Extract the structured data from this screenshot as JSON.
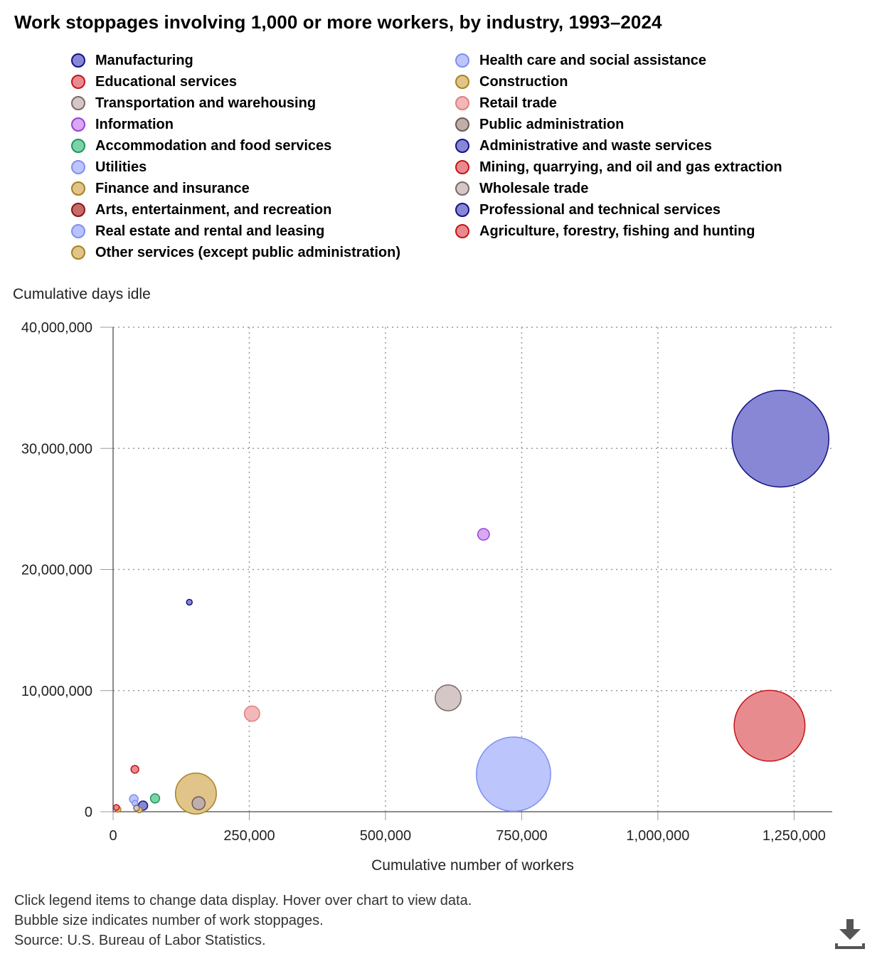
{
  "title": "Work stoppages involving 1,000 or more workers, by industry, 1993–2024",
  "legend": [
    {
      "label": "Manufacturing",
      "fill": "#8787d6",
      "stroke": "#141482"
    },
    {
      "label": "Educational services",
      "fill": "#e88b8e",
      "stroke": "#c4161c"
    },
    {
      "label": "Transportation and warehousing",
      "fill": "#d6c7c7",
      "stroke": "#7a6a6a"
    },
    {
      "label": "Information",
      "fill": "#d8a8f2",
      "stroke": "#9b40d8"
    },
    {
      "label": "Accommodation and food services",
      "fill": "#7fd1aa",
      "stroke": "#1a9a5a"
    },
    {
      "label": "Utilities",
      "fill": "#bcc5fc",
      "stroke": "#7f8ff0"
    },
    {
      "label": "Finance and insurance",
      "fill": "#e0c48a",
      "stroke": "#a8821e"
    },
    {
      "label": "Arts, entertainment, and recreation",
      "fill": "#c76a6a",
      "stroke": "#8a1515"
    },
    {
      "label": "Real estate and rental and leasing",
      "fill": "#b8c2fc",
      "stroke": "#7f8ff0"
    },
    {
      "label": "Other services (except public administration)",
      "fill": "#e0c48a",
      "stroke": "#a8821e"
    },
    {
      "label": "Health care and social assistance",
      "fill": "#bcc5fc",
      "stroke": "#7f8ff0"
    },
    {
      "label": "Construction",
      "fill": "#e0c48a",
      "stroke": "#a8821e"
    },
    {
      "label": "Retail trade",
      "fill": "#f2b8b8",
      "stroke": "#e08080"
    },
    {
      "label": "Public administration",
      "fill": "#bfaea9",
      "stroke": "#6e5a52"
    },
    {
      "label": "Administrative and waste services",
      "fill": "#8787d6",
      "stroke": "#141482"
    },
    {
      "label": "Mining, quarrying, and oil and gas extraction",
      "fill": "#e88b8e",
      "stroke": "#c4161c"
    },
    {
      "label": "Wholesale trade",
      "fill": "#d6c7c7",
      "stroke": "#7a6a6a"
    },
    {
      "label": "Professional and technical services",
      "fill": "#8787d6",
      "stroke": "#141482"
    },
    {
      "label": "Agriculture, forestry, fishing and hunting",
      "fill": "#e88b8e",
      "stroke": "#c4161c"
    }
  ],
  "chart_data": {
    "type": "scatter",
    "title": "Work stoppages involving 1,000 or more workers, by industry, 1993–2024",
    "xlabel": "Cumulative number of workers",
    "ylabel": "Cumulative days idle",
    "xlim": [
      0,
      1320000
    ],
    "ylim": [
      0,
      40000000
    ],
    "xticks": [
      0,
      250000,
      500000,
      750000,
      1000000,
      1250000
    ],
    "xtick_labels": [
      "0",
      "250,000",
      "500,000",
      "750,000",
      "1,000,000",
      "1,250,000"
    ],
    "yticks": [
      0,
      10000000,
      20000000,
      30000000,
      40000000
    ],
    "ytick_labels": [
      "0",
      "10,000,000",
      "20,000,000",
      "30,000,000",
      "40,000,000"
    ],
    "grid": true,
    "bubble_size_meaning": "number of work stoppages",
    "series": [
      {
        "name": "Manufacturing",
        "x": 1225000,
        "y": 30800000,
        "size": 280
      },
      {
        "name": "Educational services",
        "x": 1205000,
        "y": 7100000,
        "size": 150
      },
      {
        "name": "Transportation and warehousing",
        "x": 615000,
        "y": 9400000,
        "size": 20
      },
      {
        "name": "Information",
        "x": 680000,
        "y": 22900000,
        "size": 4
      },
      {
        "name": "Accommodation and food services",
        "x": 77000,
        "y": 1100000,
        "size": 2.5
      },
      {
        "name": "Utilities",
        "x": 38000,
        "y": 1050000,
        "size": 2.2
      },
      {
        "name": "Finance and insurance",
        "x": 48000,
        "y": 150000,
        "size": 0.4
      },
      {
        "name": "Arts, entertainment, and recreation",
        "x": 7000,
        "y": 300000,
        "size": 0.8
      },
      {
        "name": "Real estate and rental and leasing",
        "x": 40000,
        "y": 700000,
        "size": 0.6
      },
      {
        "name": "Other services (except public administration)",
        "x": 9000,
        "y": 200000,
        "size": 0.8
      },
      {
        "name": "Health care and social assistance",
        "x": 735000,
        "y": 3100000,
        "size": 165
      },
      {
        "name": "Construction",
        "x": 152000,
        "y": 1500000,
        "size": 50
      },
      {
        "name": "Retail trade",
        "x": 255000,
        "y": 8100000,
        "size": 7
      },
      {
        "name": "Public administration",
        "x": 157000,
        "y": 700000,
        "size": 5
      },
      {
        "name": "Administrative and waste services",
        "x": 55000,
        "y": 500000,
        "size": 2.5
      },
      {
        "name": "Mining, quarrying, and oil and gas extraction",
        "x": 40000,
        "y": 3500000,
        "size": 1.8
      },
      {
        "name": "Wholesale trade",
        "x": 43000,
        "y": 300000,
        "size": 0.3
      },
      {
        "name": "Professional and technical services",
        "x": 140000,
        "y": 17300000,
        "size": 0.8
      },
      {
        "name": "Agriculture, forestry, fishing and hunting",
        "x": 6000,
        "y": 350000,
        "size": 0.3
      }
    ]
  },
  "notes": {
    "line1": "Click legend items to change data display. Hover over chart to view data.",
    "line2": "Bubble size indicates number of work stoppages.",
    "line3": "Source: U.S. Bureau of Labor Statistics."
  },
  "download": {
    "icon": "download-icon"
  }
}
